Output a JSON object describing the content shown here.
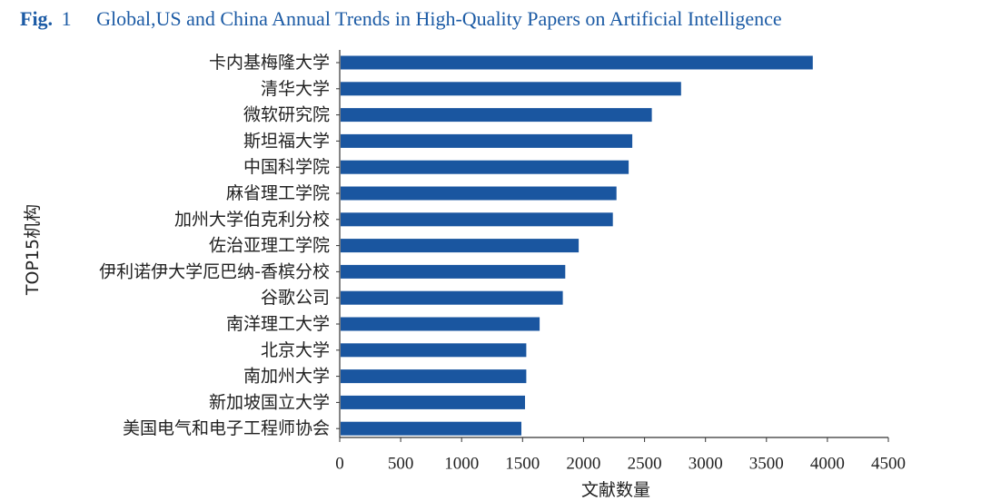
{
  "caption": {
    "label": "Fig.",
    "number": "1",
    "title": "Global,US and China Annual Trends in High-Quality Papers on Artificial Intelligence"
  },
  "colors": {
    "bar": "#1a56a0",
    "caption": "#1c5ba5",
    "axis": "#333333",
    "text": "#222222"
  },
  "chart_data": {
    "type": "bar",
    "orientation": "horizontal",
    "xlabel": "文献数量",
    "ylabel": "TOP15机构",
    "xlim": [
      0,
      4500
    ],
    "xticks": [
      0,
      500,
      1000,
      1500,
      2000,
      2500,
      3000,
      3500,
      4000,
      4500
    ],
    "grid": false,
    "categories": [
      "卡内基梅隆大学",
      "清华大学",
      "微软研究院",
      "斯坦福大学",
      "中国科学院",
      "麻省理工学院",
      "加州大学伯克利分校",
      "佐治亚理工学院",
      "伊利诺伊大学厄巴纳-香槟分校",
      "谷歌公司",
      "南洋理工大学",
      "北京大学",
      "南加州大学",
      "新加坡国立大学",
      "美国电气和电子工程师协会"
    ],
    "values": [
      3880,
      2800,
      2560,
      2400,
      2370,
      2270,
      2240,
      1960,
      1850,
      1830,
      1640,
      1530,
      1530,
      1520,
      1490
    ]
  }
}
